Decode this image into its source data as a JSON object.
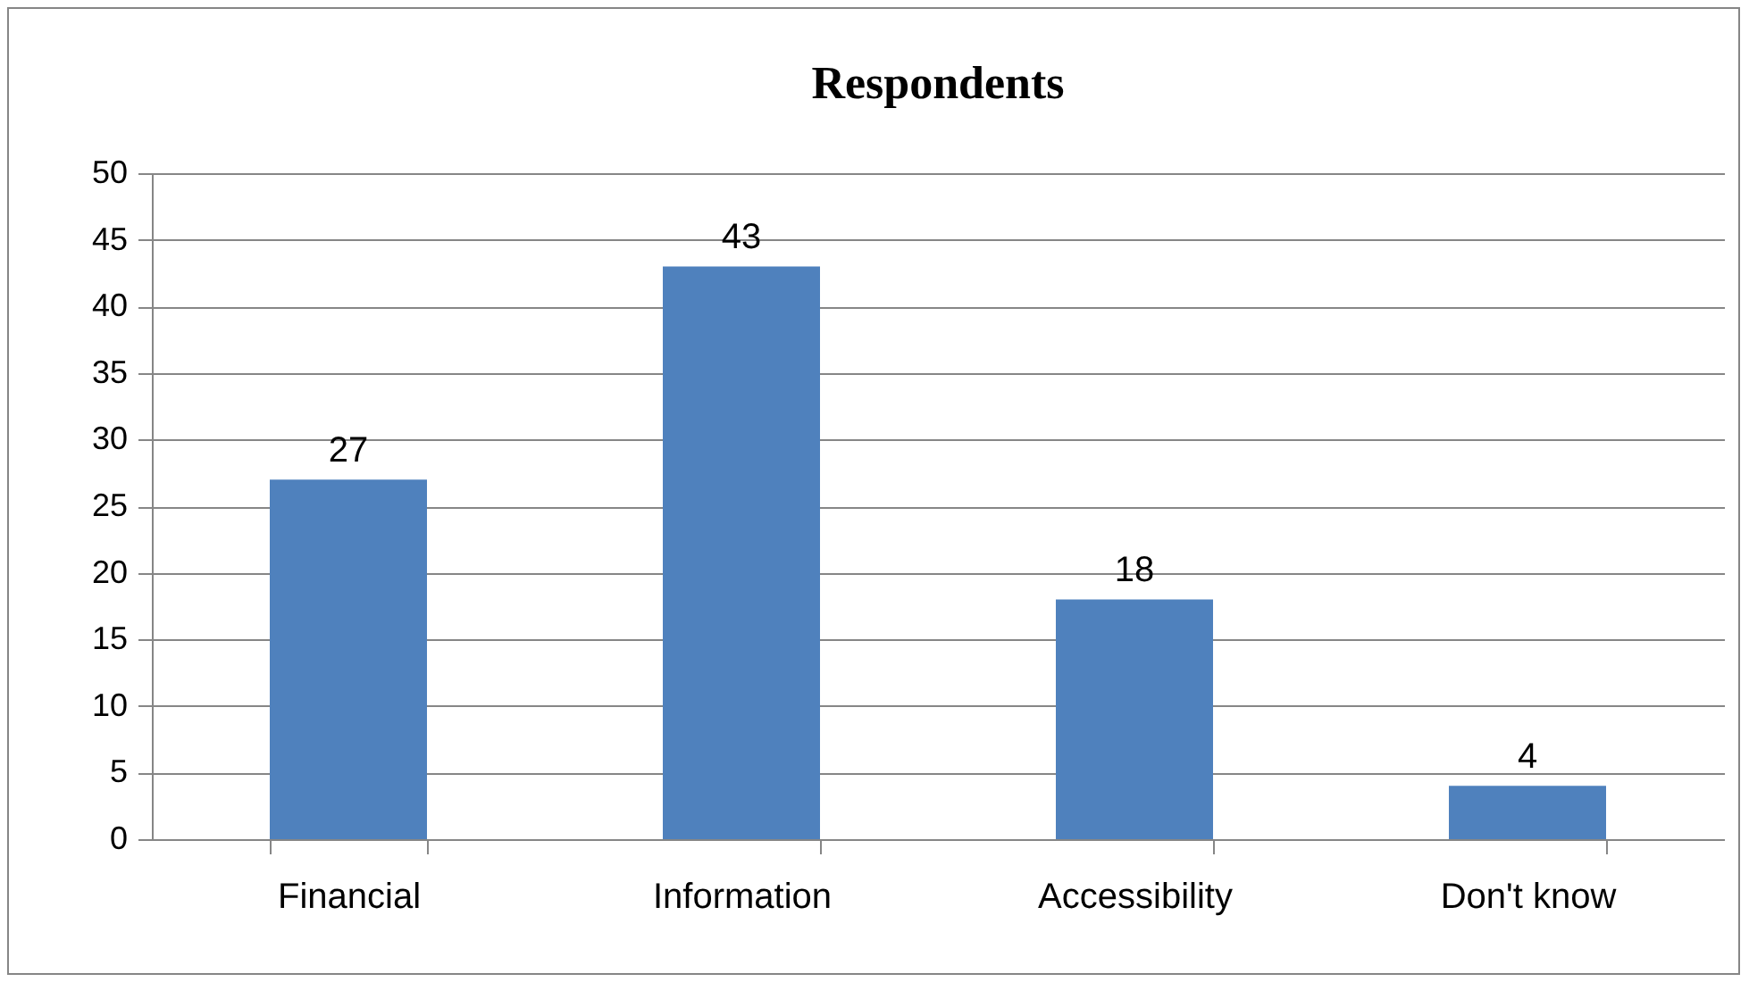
{
  "chart_data": {
    "type": "bar",
    "title": "Respondents",
    "categories": [
      "Financial",
      "Information",
      "Accessibility",
      "Don't know"
    ],
    "values": [
      27,
      43,
      18,
      4
    ],
    "color": "#4f81bd",
    "ylim": [
      0,
      50
    ],
    "yticks": [
      0,
      5,
      10,
      15,
      20,
      25,
      30,
      35,
      40,
      45,
      50
    ],
    "grid": "y",
    "data_labels": true
  }
}
